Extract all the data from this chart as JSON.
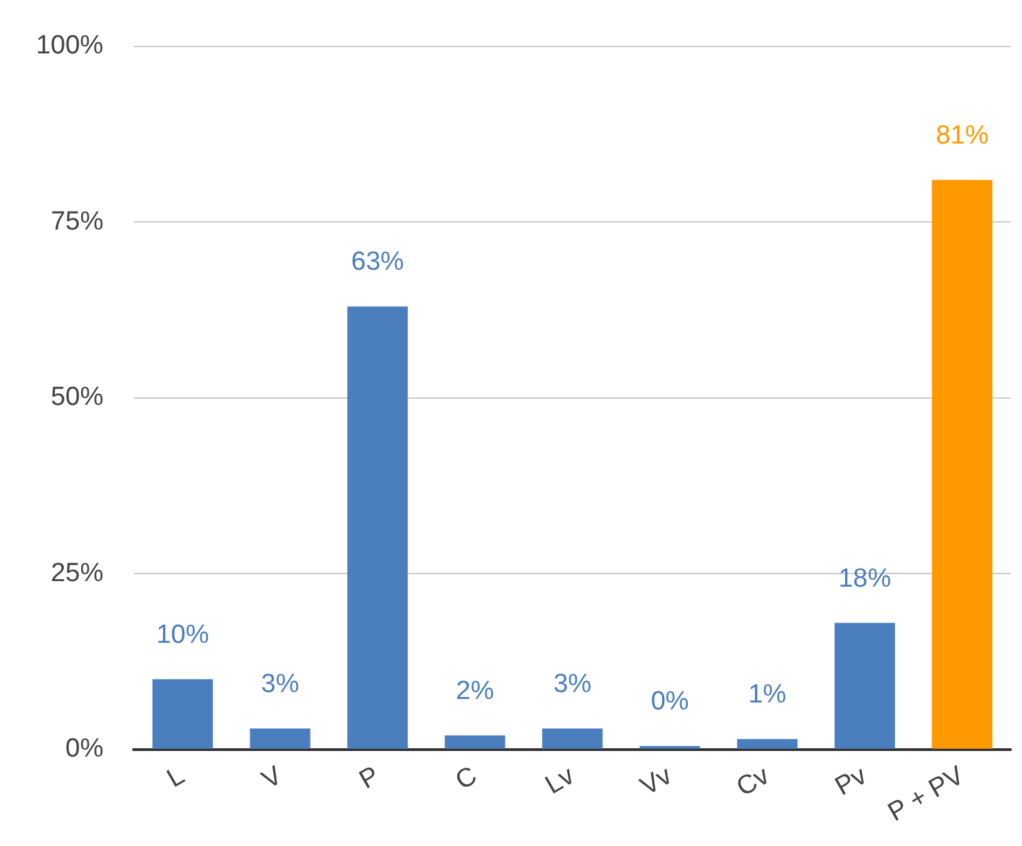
{
  "chart_data": {
    "type": "bar",
    "categories": [
      "L",
      "V",
      "P",
      "C",
      "Lv",
      "Vv",
      "Cv",
      "Pv",
      "P + PV"
    ],
    "values": [
      10,
      3,
      63,
      2,
      3,
      0.5,
      1.5,
      18,
      81
    ],
    "value_labels": [
      "10%",
      "3%",
      "63%",
      "2%",
      "3%",
      "0%",
      "1%",
      "18%",
      "81%"
    ],
    "colors": [
      "#4a7ebf",
      "#4a7ebf",
      "#4a7ebf",
      "#4a7ebf",
      "#4a7ebf",
      "#4a7ebf",
      "#4a7ebf",
      "#4a7ebf",
      "#ff9900"
    ],
    "ylim": [
      0,
      100
    ],
    "yticks": [
      {
        "value": 0,
        "label": "0%"
      },
      {
        "value": 25,
        "label": "25%"
      },
      {
        "value": 50,
        "label": "50%"
      },
      {
        "value": 75,
        "label": "75%"
      },
      {
        "value": 100,
        "label": "100%"
      }
    ],
    "grid": "y",
    "legend": false
  }
}
